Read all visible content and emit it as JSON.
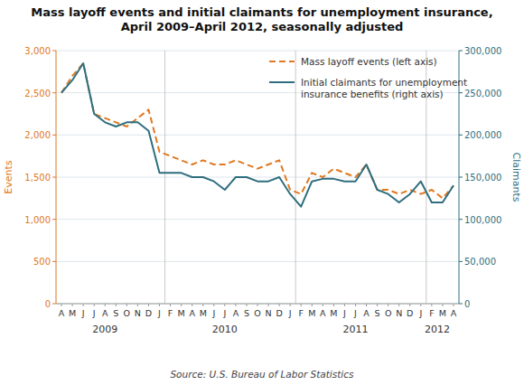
{
  "chart_data": {
    "type": "line",
    "title": "Mass layoff events and initial claimants for unemployment insurance,\nApril 2009–April 2012, seasonally adjusted",
    "categories": [
      "A",
      "M",
      "J",
      "J",
      "A",
      "S",
      "O",
      "N",
      "D",
      "J",
      "F",
      "M",
      "A",
      "M",
      "J",
      "J",
      "A",
      "S",
      "O",
      "N",
      "D",
      "J",
      "F",
      "M",
      "A",
      "M",
      "J",
      "J",
      "A",
      "S",
      "O",
      "N",
      "D",
      "J",
      "F",
      "M",
      "A"
    ],
    "series": [
      {
        "name": "Mass layoff events (left axis)",
        "color": "#E07820",
        "line_style": "dashed",
        "axis": "y",
        "values": [
          2500,
          2700,
          2850,
          2250,
          2200,
          2150,
          2100,
          2200,
          2300,
          1800,
          1750,
          1700,
          1650,
          1700,
          1650,
          1650,
          1700,
          1650,
          1600,
          1650,
          1700,
          1350,
          1300,
          1550,
          1500,
          1600,
          1550,
          1500,
          1650,
          1350,
          1350,
          1300,
          1350,
          1300,
          1350,
          1250,
          1400
        ]
      },
      {
        "name": "Initial claimants for unemployment\ninsurance benefits (right axis)",
        "color": "#2E6E7E",
        "line_style": "solid",
        "axis": "y2",
        "values": [
          250000,
          265000,
          285000,
          225000,
          215000,
          210000,
          215000,
          215000,
          205000,
          155000,
          155000,
          155000,
          150000,
          150000,
          145000,
          135000,
          150000,
          150000,
          145000,
          145000,
          150000,
          130000,
          115000,
          145000,
          148000,
          148000,
          145000,
          145000,
          165000,
          135000,
          130000,
          120000,
          130000,
          145000,
          120000,
          120000,
          140000
        ]
      }
    ],
    "y_label": "Events",
    "y2_label": "Claimants",
    "ylim": [
      0,
      3000
    ],
    "yticks": [
      0,
      500,
      {
        "value": 1000,
        "label": "1,000"
      },
      {
        "value": 1500,
        "label": "1,500"
      },
      {
        "value": 2000,
        "label": "2,000"
      },
      {
        "value": 2500,
        "label": "2,500"
      },
      {
        "value": 3000,
        "label": "3,000"
      }
    ],
    "y2lim": [
      0,
      300000
    ],
    "y2ticks": [
      0,
      {
        "value": 50000,
        "label": "50,000"
      },
      {
        "value": 100000,
        "label": "100,000"
      },
      {
        "value": 150000,
        "label": "150,000"
      },
      {
        "value": 200000,
        "label": "200,000"
      },
      {
        "value": 250000,
        "label": "250,000"
      },
      {
        "value": 300000,
        "label": "300,000"
      }
    ],
    "annotations": [
      {
        "text": "2009",
        "x": 4.0
      },
      {
        "text": "2010",
        "x": 15.0
      },
      {
        "text": "2011",
        "x": 27.0
      },
      {
        "text": "2012",
        "x": 34.5
      }
    ],
    "dividers": [
      9.5,
      21.5,
      33.5
    ],
    "grid": true,
    "legend": "upper right",
    "source": "Source: U.S. Bureau of Labor Statistics"
  }
}
